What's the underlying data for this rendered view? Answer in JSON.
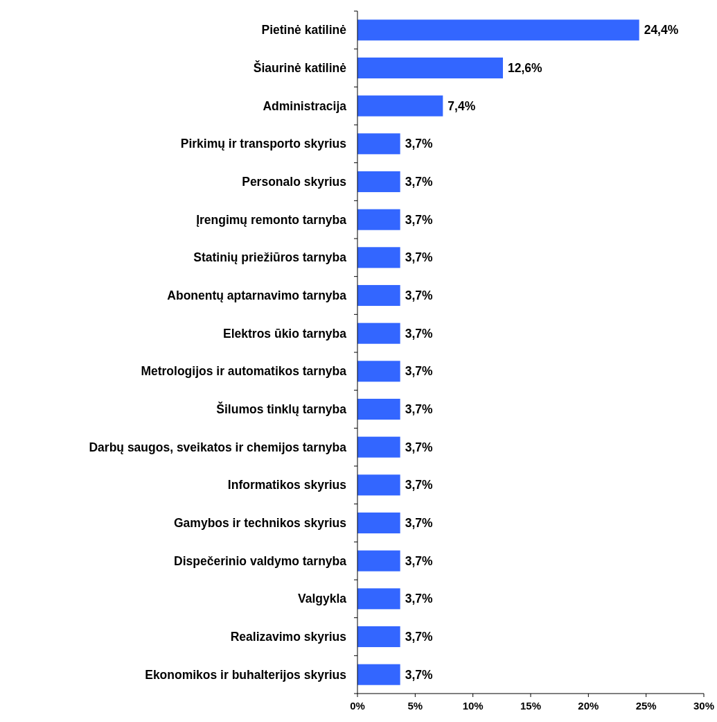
{
  "chart_data": {
    "type": "bar",
    "orientation": "horizontal",
    "categories": [
      "Pietinė katilinė",
      "Šiaurinė katilinė",
      "Administracija",
      "Pirkimų ir transporto skyrius",
      "Personalo skyrius",
      "Įrengimų remonto tarnyba",
      "Statinių priežiūros tarnyba",
      "Abonentų aptarnavimo tarnyba",
      "Elektros ūkio tarnyba",
      "Metrologijos ir automatikos tarnyba",
      "Šilumos tinklų tarnyba",
      "Darbų saugos, sveikatos ir chemijos tarnyba",
      "Informatikos skyrius",
      "Gamybos ir technikos skyrius",
      "Dispečerinio valdymo tarnyba",
      "Valgykla",
      "Realizavimo skyrius",
      "Ekonomikos ir buhalterijos skyrius"
    ],
    "values": [
      24.4,
      12.6,
      7.4,
      3.7,
      3.7,
      3.7,
      3.7,
      3.7,
      3.7,
      3.7,
      3.7,
      3.7,
      3.7,
      3.7,
      3.7,
      3.7,
      3.7,
      3.7
    ],
    "value_labels": [
      "24,4%",
      "12,6%",
      "7,4%",
      "3,7%",
      "3,7%",
      "3,7%",
      "3,7%",
      "3,7%",
      "3,7%",
      "3,7%",
      "3,7%",
      "3,7%",
      "3,7%",
      "3,7%",
      "3,7%",
      "3,7%",
      "3,7%",
      "3,7%"
    ],
    "color": "#3366ff",
    "xlim": [
      0,
      30
    ],
    "xticks": [
      {
        "value": 0,
        "label": "0%"
      },
      {
        "value": 5,
        "label": "5%"
      },
      {
        "value": 10,
        "label": "10%"
      },
      {
        "value": 15,
        "label": "15%"
      },
      {
        "value": 20,
        "label": "20%"
      },
      {
        "value": 25,
        "label": "25%"
      },
      {
        "value": 30,
        "label": "30%"
      }
    ],
    "grid": false
  }
}
